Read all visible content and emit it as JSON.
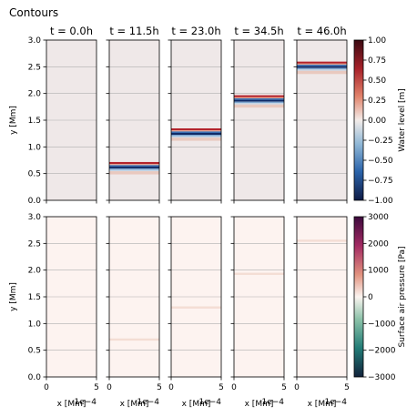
{
  "figure_title": "Contours",
  "chart_data": [
    {
      "type": "heatmap",
      "row": "water-level",
      "panel_titles": [
        "t = 0.0h",
        "t = 11.5h",
        "t = 23.0h",
        "t = 34.5h",
        "t = 46.0h"
      ],
      "times_h": [
        0.0,
        11.5,
        23.0,
        34.5,
        46.0
      ],
      "front_y_Mm": [
        null,
        0.64,
        1.27,
        1.89,
        2.52
      ],
      "ylabel": "y [Mm]",
      "xlim": [
        0,
        5
      ],
      "ylim": [
        0,
        3
      ],
      "x_ticks": [
        "0",
        "5"
      ],
      "y_ticks": [
        "0.0",
        "0.5",
        "1.0",
        "1.5",
        "2.0",
        "2.5",
        "3.0"
      ],
      "grid": true,
      "colorbar": {
        "label": "Water level [m]",
        "range": [
          -1.0,
          1.0
        ],
        "ticks": [
          "1.00",
          "0.75",
          "0.50",
          "0.25",
          "0.00",
          "−0.25",
          "−0.50",
          "−0.75",
          "−1.00"
        ],
        "colormap": "diverging-red-blue"
      }
    },
    {
      "type": "heatmap",
      "row": "surface-air-pressure",
      "times_h": [
        0.0,
        11.5,
        23.0,
        34.5,
        46.0
      ],
      "front_y_Mm": [
        null,
        0.7,
        1.3,
        1.93,
        2.55
      ],
      "xlabel": "x [Mm]",
      "x_offset_label": "1e−4",
      "ylabel": "y [Mm]",
      "xlim": [
        0,
        5
      ],
      "ylim": [
        0,
        3
      ],
      "x_ticks": [
        "0",
        "5"
      ],
      "y_ticks": [
        "0.0",
        "0.5",
        "1.0",
        "1.5",
        "2.0",
        "2.5",
        "3.0"
      ],
      "grid": true,
      "colorbar": {
        "label": "Surface air pressure [Pa]",
        "range": [
          -3000,
          3000
        ],
        "ticks": [
          "3000",
          "2000",
          "1000",
          "0",
          "−1000",
          "−2000",
          "−3000"
        ],
        "colormap": "diverging-curl"
      }
    }
  ],
  "colors": {
    "water_bg": "#efe8e8",
    "pressure_bg": "#fdf3f0",
    "grid": "#b0b0b0"
  }
}
